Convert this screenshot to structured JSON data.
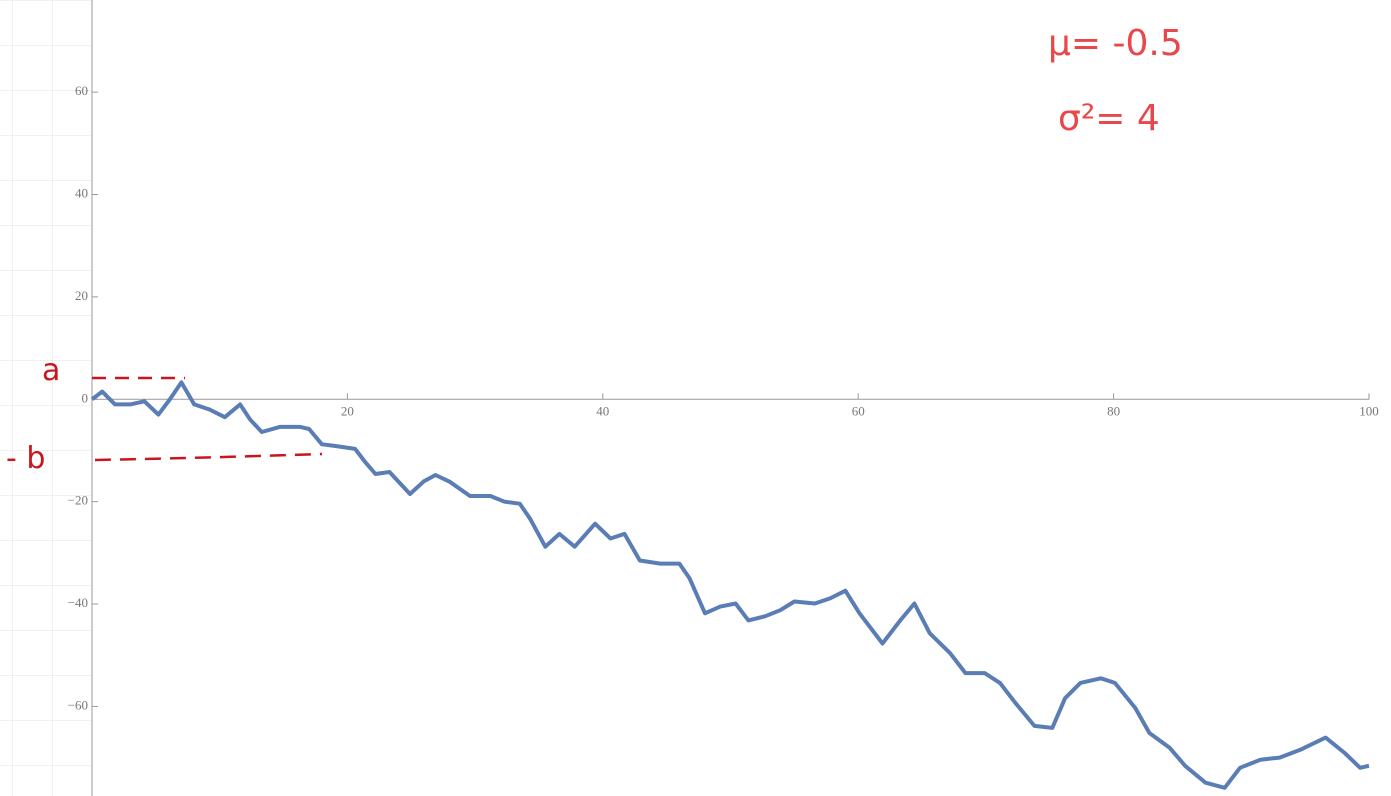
{
  "chart_data": {
    "type": "line",
    "x": [
      0,
      0.8,
      1.8,
      3,
      4.1,
      5.2,
      6.1,
      7,
      8,
      9.2,
      10.4,
      11.6,
      12.4,
      13.3,
      14.7,
      16.3,
      17,
      18,
      19,
      20.6,
      21.4,
      22.2,
      23.3,
      24.9,
      26,
      26.9,
      28,
      29.6,
      31.2,
      32.3,
      33.5,
      34.3,
      35.5,
      36.6,
      37.8,
      39.4,
      40.6,
      41.7,
      42.9,
      44.5,
      46,
      46.8,
      48,
      49.2,
      50.4,
      51.4,
      52.7,
      53.9,
      55,
      56.6,
      57.8,
      59,
      60.1,
      61.9,
      63.3,
      64.4,
      65.6,
      67.2,
      68.4,
      69.9,
      71.1,
      72.3,
      73.8,
      75.2,
      76.2,
      77.4,
      79,
      80.1,
      81.7,
      82.8,
      84.4,
      85.6,
      87.2,
      88.7,
      89.9,
      91.5,
      93,
      94.6,
      96.6,
      98.1,
      99.3,
      100
    ],
    "values": [
      0,
      1.5,
      -1,
      -1,
      -0.4,
      -3,
      0,
      3.3,
      -1,
      -2,
      -3.5,
      -1,
      -4,
      -6.4,
      -5.4,
      -5.4,
      -5.8,
      -8.8,
      -9.1,
      -9.7,
      -12.3,
      -14.6,
      -14.2,
      -18.5,
      -16,
      -14.8,
      -16.1,
      -18.9,
      -18.9,
      -20,
      -20.4,
      -23.3,
      -28.8,
      -26.3,
      -28.8,
      -24.3,
      -27.2,
      -26.3,
      -31.5,
      -32.1,
      -32.1,
      -35,
      -41.8,
      -40.5,
      -39.9,
      -43.2,
      -42.4,
      -41.2,
      -39.5,
      -39.9,
      -38.9,
      -37.4,
      -41.8,
      -47.7,
      -43.2,
      -39.9,
      -45.7,
      -49.6,
      -53.5,
      -53.5,
      -55.4,
      -59.3,
      -63.8,
      -64.2,
      -58.4,
      -55.4,
      -54.5,
      -55.4,
      -60.3,
      -65.2,
      -68.1,
      -71.6,
      -74.9,
      -75.9,
      -72,
      -70.4,
      -70,
      -68.5,
      -66.1,
      -69.1,
      -72,
      -71.6
    ],
    "color": "#5b7db5",
    "xlim": [
      0,
      100
    ],
    "xticks": [
      20,
      40,
      60,
      80,
      100
    ],
    "ylim": [
      -77.5,
      78
    ],
    "yticks": [
      {
        "value": -60,
        "label": "−60"
      },
      {
        "value": -40,
        "label": "−40"
      },
      {
        "value": -20,
        "label": "−20"
      },
      0,
      20,
      40,
      60
    ],
    "annotations": [
      "μ= -0.5",
      "σ²= 4",
      "a",
      "- b"
    ]
  }
}
